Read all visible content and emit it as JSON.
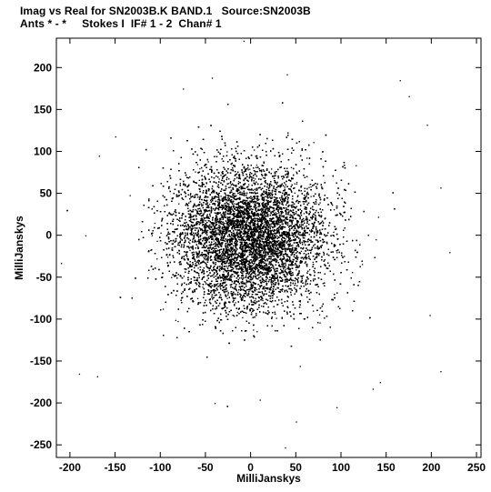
{
  "header": {
    "title_line1": "Imag vs Real for SN2003B.K BAND.1   Source:SN2003B",
    "title_line2": "Ants * - *     Stokes I  IF# 1 - 2  Chan# 1"
  },
  "chart_data": {
    "type": "scatter",
    "xlabel": "MilliJanskys",
    "ylabel": "MilliJanskys",
    "xlim": [
      -215,
      255
    ],
    "ylim": [
      -265,
      235
    ],
    "x_ticks": [
      -200,
      -150,
      -100,
      -50,
      0,
      50,
      100,
      150,
      200,
      250
    ],
    "y_ticks": [
      -250,
      -200,
      -150,
      -100,
      -50,
      0,
      50,
      100,
      150,
      200
    ],
    "grid": false,
    "marker_color": "#000000",
    "distribution": {
      "center": [
        -2,
        -2
      ],
      "spread_sigma": [
        42,
        42
      ],
      "point_count": 22000,
      "description_note": ""
    },
    "outlier_points": [
      {
        "x": 165,
        "y": 185
      },
      {
        "x": 40,
        "y": 192
      },
      {
        "x": -43,
        "y": 188
      },
      {
        "x": -8,
        "y": 232
      },
      {
        "x": 195,
        "y": 132
      },
      {
        "x": -168,
        "y": 95
      },
      {
        "x": -183,
        "y": 0
      },
      {
        "x": -210,
        "y": -33
      },
      {
        "x": -190,
        "y": -165
      },
      {
        "x": -170,
        "y": -168
      },
      {
        "x": 210,
        "y": -162
      },
      {
        "x": 135,
        "y": -183
      },
      {
        "x": 143,
        "y": -175
      },
      {
        "x": -40,
        "y": -200
      },
      {
        "x": 10,
        "y": -196
      },
      {
        "x": 50,
        "y": -222
      },
      {
        "x": 38,
        "y": -253
      },
      {
        "x": 210,
        "y": 57
      },
      {
        "x": 220,
        "y": -20
      },
      {
        "x": 198,
        "y": -95
      },
      {
        "x": 175,
        "y": 166
      },
      {
        "x": -75,
        "y": 175
      },
      {
        "x": 95,
        "y": -205
      },
      {
        "x": -150,
        "y": 118
      }
    ]
  }
}
